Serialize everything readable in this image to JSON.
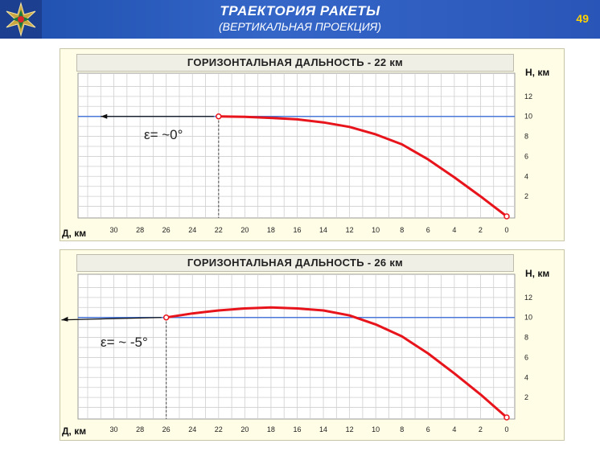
{
  "header": {
    "title": "ТРАЕКТОРИЯ  РАКЕТЫ",
    "subtitle": "(ВЕРТИКАЛЬНАЯ ПРОЕКЦИЯ)",
    "page_number": "49",
    "emblem_icon": "star-emblem-icon",
    "background_color": "#2a59bd",
    "title_color": "#ffffff",
    "page_number_color": "#ffd200"
  },
  "chart_data": [
    {
      "type": "line",
      "title": "ГОРИЗОНТАЛЬНАЯ ДАЛЬНОСТЬ  -  22 км",
      "xlabel": "Д, км",
      "ylabel": "Н, км",
      "x_ticks": [
        30,
        28,
        26,
        24,
        22,
        20,
        18,
        16,
        14,
        12,
        10,
        8,
        6,
        4,
        2,
        0
      ],
      "y_ticks": [
        2,
        4,
        6,
        8,
        10,
        12
      ],
      "xlim": [
        0,
        32
      ],
      "ylim": [
        0,
        14
      ],
      "x_reversed": true,
      "grid": true,
      "annotation": "ε= ~0°",
      "reference_altitude_km": 10,
      "launch_range_km": 22,
      "series": [
        {
          "color": "#e8141c",
          "x": [
            22,
            20,
            18,
            16,
            14,
            12,
            10,
            8,
            6,
            4,
            2,
            0
          ],
          "y": [
            10.0,
            9.95,
            9.85,
            9.7,
            9.4,
            8.95,
            8.2,
            7.2,
            5.7,
            3.9,
            2.0,
            0.0
          ]
        }
      ],
      "colors": {
        "reference_line": "#4a78d8",
        "arrow": "#111111",
        "grid": "#cfcfcf"
      }
    },
    {
      "type": "line",
      "title": "ГОРИЗОНТАЛЬНАЯ ДАЛЬНОСТЬ  -  26 км",
      "xlabel": "Д, км",
      "ylabel": "Н, км",
      "x_ticks": [
        30,
        28,
        26,
        24,
        22,
        20,
        18,
        16,
        14,
        12,
        10,
        8,
        6,
        4,
        2,
        0
      ],
      "y_ticks": [
        2,
        4,
        6,
        8,
        10,
        12
      ],
      "xlim": [
        0,
        32
      ],
      "ylim": [
        0,
        14
      ],
      "x_reversed": true,
      "grid": true,
      "annotation": "ε= ~ -5°",
      "reference_altitude_km": 10,
      "launch_range_km": 26,
      "series": [
        {
          "color": "#e8141c",
          "x": [
            26,
            24,
            22,
            20,
            18,
            16,
            14,
            12,
            10,
            8,
            6,
            4,
            2,
            0
          ],
          "y": [
            10.0,
            10.4,
            10.7,
            10.9,
            11.0,
            10.9,
            10.7,
            10.2,
            9.3,
            8.1,
            6.4,
            4.4,
            2.3,
            0.0
          ]
        }
      ],
      "colors": {
        "reference_line": "#4a78d8",
        "arrow": "#111111",
        "grid": "#cfcfcf"
      }
    }
  ]
}
